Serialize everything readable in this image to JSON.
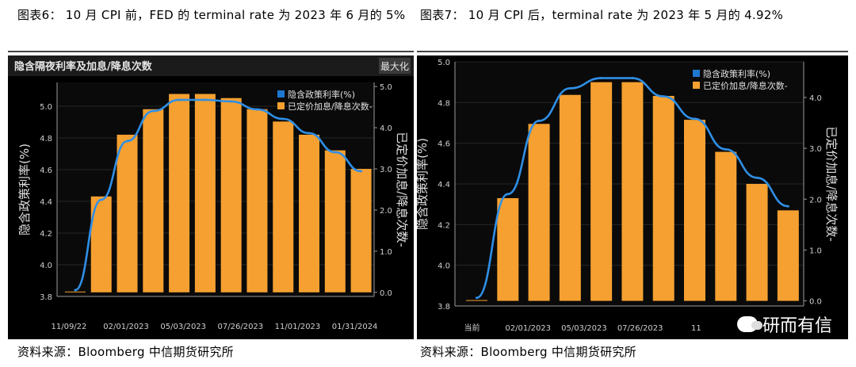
{
  "captions": {
    "left": "图表6： 10 月 CPI 前，FED 的 terminal  rate 为 2023 年 6 月的 5%",
    "right": "图表7： 10 月 CPI 后，terminal rate 为 2023 年 5 月的 4.92%"
  },
  "sources": {
    "left": "资料来源：Bloomberg 中信期货研究所",
    "right": "资料来源：Bloomberg 中信期货研究所"
  },
  "watermark": "研而有信",
  "chart_data": [
    {
      "type": "bar",
      "title": "隐含隔夜利率及加息/降息次数",
      "corner_label": "最大化",
      "ylabel": "隐含政策利率(%)",
      "y2label": "已定价加息/降息次数-",
      "ylim": [
        3.8,
        5.15
      ],
      "y2lim": [
        -0.1,
        5.1
      ],
      "yticks": [
        "3.8",
        "4.0",
        "4.2",
        "4.4",
        "4.6",
        "4.8",
        "5.0"
      ],
      "y2ticks": [
        "0.0",
        "1.0",
        "2.0",
        "3.0",
        "4.0",
        "5.0"
      ],
      "xticks": [
        "11/09/22",
        "02/01/2023",
        "05/03/2023",
        "07/26/2023",
        "11/01/2023",
        "01/31/2024"
      ],
      "legend": [
        "隐含政策利率(%)",
        "已定价加息/降息次数-"
      ],
      "legend_position": "top-right",
      "bar_values": [
        0.0,
        2.33,
        3.83,
        4.45,
        4.82,
        4.82,
        4.72,
        4.45,
        4.15,
        3.83,
        3.45,
        3.0
      ],
      "line_values": [
        3.84,
        4.41,
        4.78,
        4.97,
        5.04,
        5.04,
        5.03,
        4.98,
        4.92,
        4.83,
        4.71,
        4.59
      ],
      "colors": {
        "bar": "#f5a030",
        "line": "#2f8fe6",
        "legend_line": "#1e78d0"
      }
    },
    {
      "type": "bar",
      "ylabel": "隐含政策利率(%)",
      "y2label": "已定价加息/降息次数-",
      "ylim": [
        3.8,
        5.0
      ],
      "y2lim": [
        -0.1,
        4.7
      ],
      "yticks": [
        "3.8",
        "4.0",
        "4.2",
        "4.4",
        "4.6",
        "4.8",
        "5.0"
      ],
      "y2ticks": [
        "0.0",
        "1.0",
        "2.0",
        "3.0",
        "4.0"
      ],
      "xticks": [
        "当前",
        "02/01/2023",
        "05/03/2023",
        "07/26/2023",
        "11"
      ],
      "legend": [
        "隐含政策利率(%)",
        "已定价加息/降息次数-"
      ],
      "legend_position": "top-right",
      "bar_values": [
        0.0,
        2.02,
        3.48,
        4.05,
        4.3,
        4.3,
        4.03,
        3.56,
        2.93,
        2.3,
        1.78
      ],
      "line_values": [
        3.84,
        4.35,
        4.71,
        4.87,
        4.92,
        4.92,
        4.83,
        4.72,
        4.57,
        4.43,
        4.29
      ],
      "colors": {
        "bar": "#f5a030",
        "line": "#2f8fe6",
        "legend_line": "#1e78d0"
      }
    }
  ]
}
